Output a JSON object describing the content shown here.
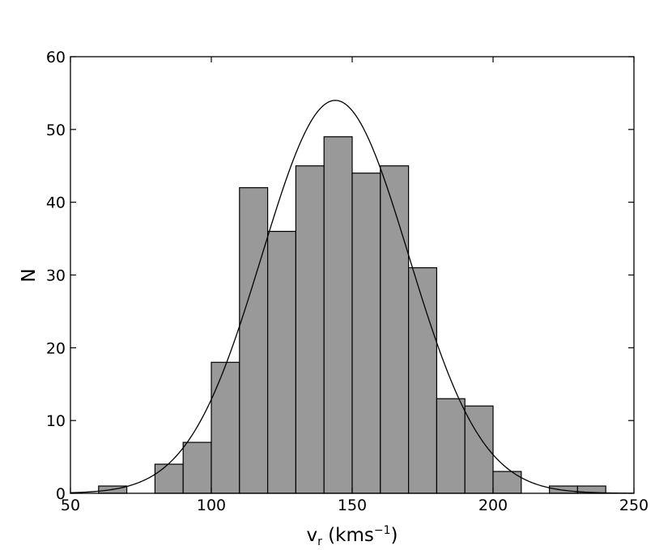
{
  "chart_data": {
    "type": "bar",
    "title": "",
    "xlabel": {
      "base": "v",
      "sub": "r",
      "units_open": " (kms",
      "sup": "−1",
      "units_close": ")"
    },
    "ylabel": "N",
    "xlim": [
      50,
      250
    ],
    "ylim": [
      0,
      60
    ],
    "xticks": [
      "50",
      "100",
      "150",
      "200",
      "250"
    ],
    "yticks": [
      "0",
      "10",
      "20",
      "30",
      "40",
      "50",
      "60"
    ],
    "grid": false,
    "bar_color": "#999999",
    "bins": [
      {
        "x0": 60,
        "x1": 70,
        "value": 1
      },
      {
        "x0": 80,
        "x1": 90,
        "value": 4
      },
      {
        "x0": 90,
        "x1": 100,
        "value": 7
      },
      {
        "x0": 100,
        "x1": 110,
        "value": 18
      },
      {
        "x0": 110,
        "x1": 120,
        "value": 42
      },
      {
        "x0": 120,
        "x1": 130,
        "value": 36
      },
      {
        "x0": 130,
        "x1": 140,
        "value": 45
      },
      {
        "x0": 140,
        "x1": 150,
        "value": 49
      },
      {
        "x0": 150,
        "x1": 160,
        "value": 44
      },
      {
        "x0": 160,
        "x1": 170,
        "value": 45
      },
      {
        "x0": 170,
        "x1": 180,
        "value": 31
      },
      {
        "x0": 180,
        "x1": 190,
        "value": 13
      },
      {
        "x0": 190,
        "x1": 200,
        "value": 12
      },
      {
        "x0": 200,
        "x1": 210,
        "value": 3
      },
      {
        "x0": 220,
        "x1": 230,
        "value": 1
      },
      {
        "x0": 230,
        "x1": 240,
        "value": 1
      }
    ],
    "fit_curve": {
      "type": "gaussian",
      "mean": 144,
      "sigma": 26,
      "peak": 54
    }
  }
}
